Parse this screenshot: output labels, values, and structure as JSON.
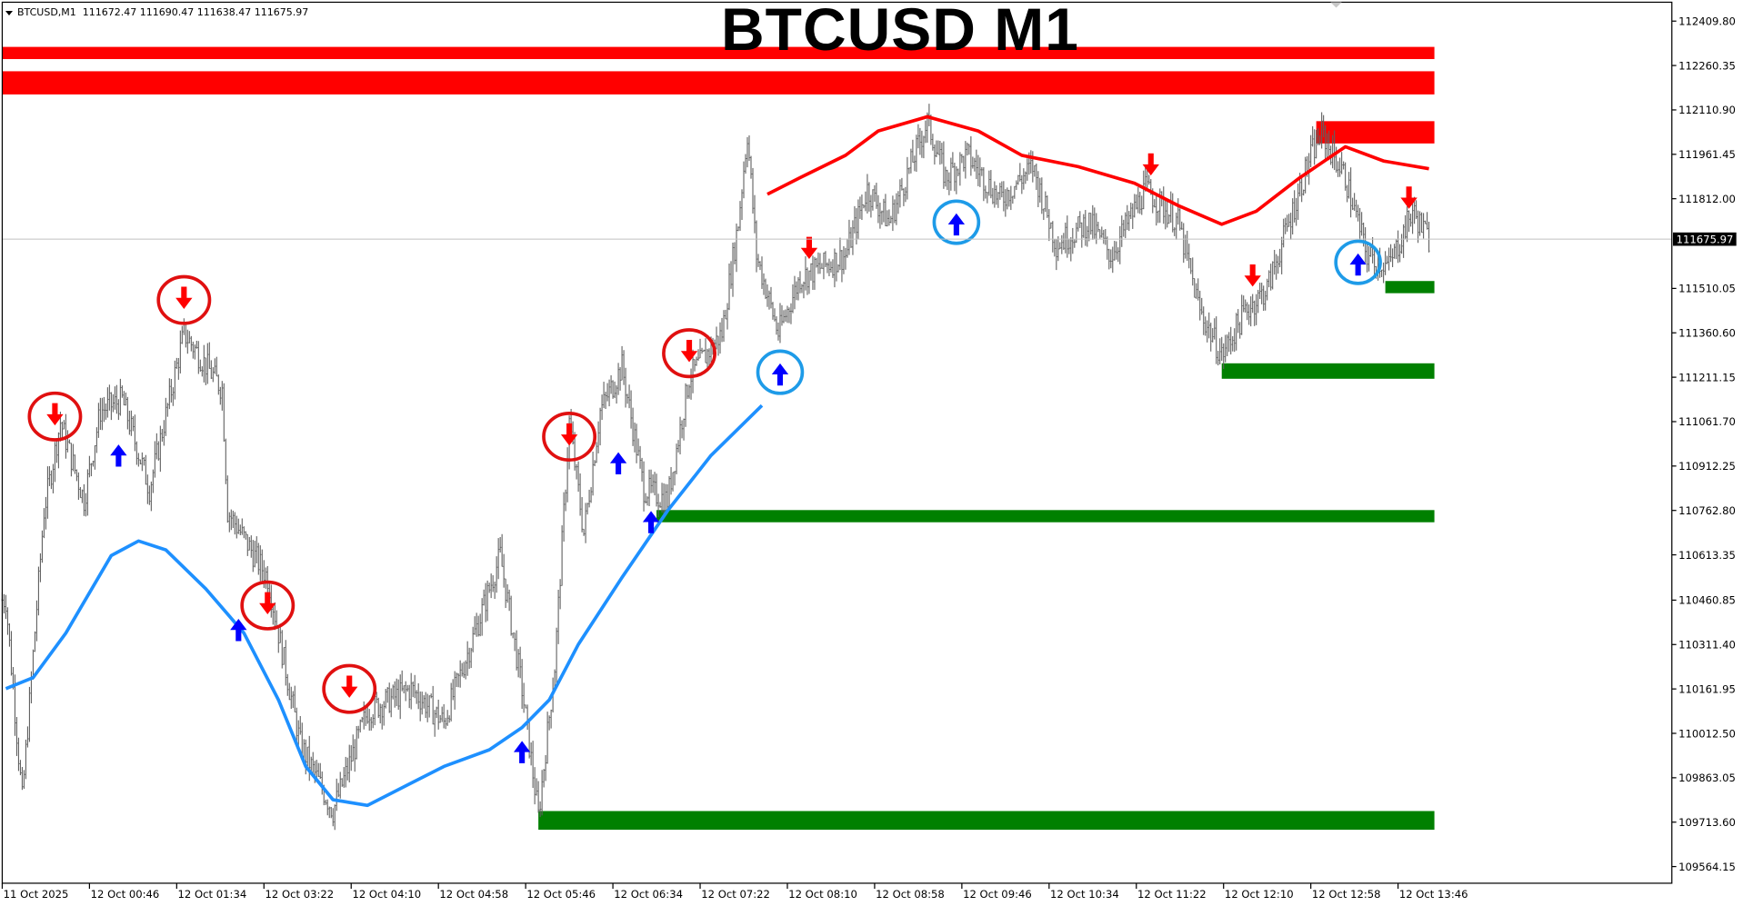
{
  "header": {
    "symbol": "BTCUSD,M1",
    "ohlc": "111672.47 111690.47 111638.47 111675.97"
  },
  "chart_title": "BTCUSD M1",
  "chart_data": {
    "type": "candlestick",
    "title": "BTCUSD M1",
    "x_unit": "M1 bars",
    "ylim": [
      109490,
      112470
    ],
    "y_ticks": [
      "112409.80",
      "112260.35",
      "112110.90",
      "111961.45",
      "111812.00",
      "111510.05",
      "111360.60",
      "111211.15",
      "111061.70",
      "110912.25",
      "110762.80",
      "110613.35",
      "110460.85",
      "110311.40",
      "110161.95",
      "110012.50",
      "109863.05",
      "109713.60",
      "109564.15"
    ],
    "x_ticks": [
      "11 Oct 2025",
      "12 Oct 00:46",
      "12 Oct 01:34",
      "12 Oct 03:22",
      "12 Oct 04:10",
      "12 Oct 04:58",
      "12 Oct 05:46",
      "12 Oct 06:34",
      "12 Oct 07:22",
      "12 Oct 08:10",
      "12 Oct 08:58",
      "12 Oct 09:46",
      "12 Oct 10:34",
      "12 Oct 11:22",
      "12 Oct 12:10",
      "12 Oct 12:58",
      "12 Oct 13:46"
    ],
    "x_tick_every_bars": 48,
    "current_price": "111675.97",
    "price_path": [
      [
        2,
        110462
      ],
      [
        11,
        109789
      ],
      [
        23,
        110761
      ],
      [
        32,
        111060
      ],
      [
        45,
        110798
      ],
      [
        54,
        111098
      ],
      [
        66,
        111135
      ],
      [
        81,
        110836
      ],
      [
        100,
        111359
      ],
      [
        121,
        111172
      ],
      [
        124,
        110761
      ],
      [
        146,
        110537
      ],
      [
        164,
        109976
      ],
      [
        182,
        109751
      ],
      [
        201,
        110088
      ],
      [
        225,
        110162
      ],
      [
        243,
        110050
      ],
      [
        262,
        110387
      ],
      [
        274,
        110611
      ],
      [
        286,
        110162
      ],
      [
        295,
        109733
      ],
      [
        304,
        110237
      ],
      [
        312,
        111060
      ],
      [
        320,
        110686
      ],
      [
        329,
        111098
      ],
      [
        341,
        111247
      ],
      [
        353,
        110836
      ],
      [
        366,
        110798
      ],
      [
        378,
        111210
      ],
      [
        396,
        111359
      ],
      [
        405,
        111733
      ],
      [
        410,
        112032
      ],
      [
        415,
        111621
      ],
      [
        427,
        111359
      ],
      [
        439,
        111546
      ],
      [
        464,
        111621
      ],
      [
        476,
        111845
      ],
      [
        488,
        111733
      ],
      [
        509,
        112070
      ],
      [
        519,
        111883
      ],
      [
        531,
        111958
      ],
      [
        549,
        111808
      ],
      [
        567,
        111920
      ],
      [
        580,
        111658
      ],
      [
        598,
        111733
      ],
      [
        610,
        111621
      ],
      [
        629,
        111845
      ],
      [
        647,
        111733
      ],
      [
        659,
        111434
      ],
      [
        671,
        111284
      ],
      [
        684,
        111434
      ],
      [
        696,
        111509
      ],
      [
        708,
        111733
      ],
      [
        720,
        111958
      ],
      [
        726,
        112032
      ],
      [
        739,
        111883
      ],
      [
        751,
        111621
      ],
      [
        763,
        111584
      ],
      [
        776,
        111770
      ],
      [
        785,
        111676
      ]
    ],
    "series": [
      {
        "color": "#1e90ff",
        "points": [
          [
            2,
            110163
          ],
          [
            17,
            110200
          ],
          [
            35,
            110350
          ],
          [
            60,
            110611
          ],
          [
            75,
            110660
          ],
          [
            90,
            110630
          ],
          [
            112,
            110499
          ],
          [
            133,
            110350
          ],
          [
            152,
            110125
          ],
          [
            167,
            109901
          ],
          [
            182,
            109789
          ],
          [
            201,
            109770
          ],
          [
            225,
            109845
          ],
          [
            243,
            109901
          ],
          [
            268,
            109957
          ],
          [
            286,
            110032
          ],
          [
            301,
            110125
          ],
          [
            317,
            110312
          ],
          [
            341,
            110537
          ],
          [
            366,
            110761
          ],
          [
            390,
            110948
          ],
          [
            418,
            111116
          ]
        ]
      },
      {
        "color": "#ff0000",
        "points": [
          [
            421,
            111827
          ],
          [
            439,
            111883
          ],
          [
            464,
            111958
          ],
          [
            482,
            112040
          ],
          [
            509,
            112088
          ],
          [
            537,
            112040
          ],
          [
            561,
            111958
          ],
          [
            592,
            111920
          ],
          [
            623,
            111864
          ],
          [
            647,
            111789
          ],
          [
            671,
            111726
          ],
          [
            690,
            111770
          ],
          [
            714,
            111883
          ],
          [
            739,
            111987
          ],
          [
            760,
            111939
          ],
          [
            785,
            111913
          ]
        ]
      }
    ],
    "zones": [
      {
        "type": "resistance",
        "color": "#ff0000",
        "from": 0,
        "to": 788,
        "top": 112323,
        "bottom": 112282
      },
      {
        "type": "resistance",
        "color": "#ff0000",
        "from": 0,
        "to": 788,
        "top": 112241,
        "bottom": 112163
      },
      {
        "type": "resistance",
        "color": "#ff0000",
        "from": 723,
        "to": 788,
        "top": 112073,
        "bottom": 111998
      },
      {
        "type": "support",
        "color": "#008000",
        "from": 761,
        "to": 788,
        "top": 111535,
        "bottom": 111494
      },
      {
        "type": "support",
        "color": "#008000",
        "from": 671,
        "to": 788,
        "top": 111258,
        "bottom": 111206
      },
      {
        "type": "support",
        "color": "#008000",
        "from": 360,
        "to": 788,
        "top": 110764,
        "bottom": 110723
      },
      {
        "type": "support",
        "color": "#008000",
        "from": 295,
        "to": 788,
        "top": 109751,
        "bottom": 109688
      }
    ],
    "signals": [
      {
        "dir": "down",
        "circled": true,
        "bar": 29,
        "price": 111079
      },
      {
        "dir": "down",
        "circled": true,
        "bar": 100,
        "price": 111471
      },
      {
        "dir": "down",
        "circled": true,
        "bar": 146,
        "price": 110443
      },
      {
        "dir": "down",
        "circled": true,
        "bar": 191,
        "price": 110162
      },
      {
        "dir": "down",
        "circled": true,
        "bar": 312,
        "price": 111011
      },
      {
        "dir": "down",
        "circled": true,
        "bar": 378,
        "price": 111292
      },
      {
        "dir": "down",
        "circled": false,
        "bar": 444,
        "price": 111639
      },
      {
        "dir": "down",
        "circled": false,
        "bar": 632,
        "price": 111920
      },
      {
        "dir": "down",
        "circled": false,
        "bar": 688,
        "price": 111546
      },
      {
        "dir": "down",
        "circled": false,
        "bar": 774,
        "price": 111808
      },
      {
        "dir": "up",
        "circled": false,
        "bar": 64,
        "price": 110955
      },
      {
        "dir": "up",
        "circled": false,
        "bar": 130,
        "price": 110368
      },
      {
        "dir": "up",
        "circled": false,
        "bar": 286,
        "price": 109957
      },
      {
        "dir": "up",
        "circled": false,
        "bar": 339,
        "price": 110929
      },
      {
        "dir": "up",
        "circled": false,
        "bar": 357,
        "price": 110731
      },
      {
        "dir": "up",
        "circled": true,
        "bar": 428,
        "price": 111228
      },
      {
        "dir": "up",
        "circled": true,
        "bar": 525,
        "price": 111733
      },
      {
        "dir": "up",
        "circled": true,
        "bar": 746,
        "price": 111598
      }
    ],
    "colors": {
      "candles": "#606060",
      "down_arrow": "#ff0000",
      "down_circle": "#e01010",
      "up_arrow": "#0000ff",
      "up_circle": "#1e9be8",
      "grid": false
    }
  }
}
